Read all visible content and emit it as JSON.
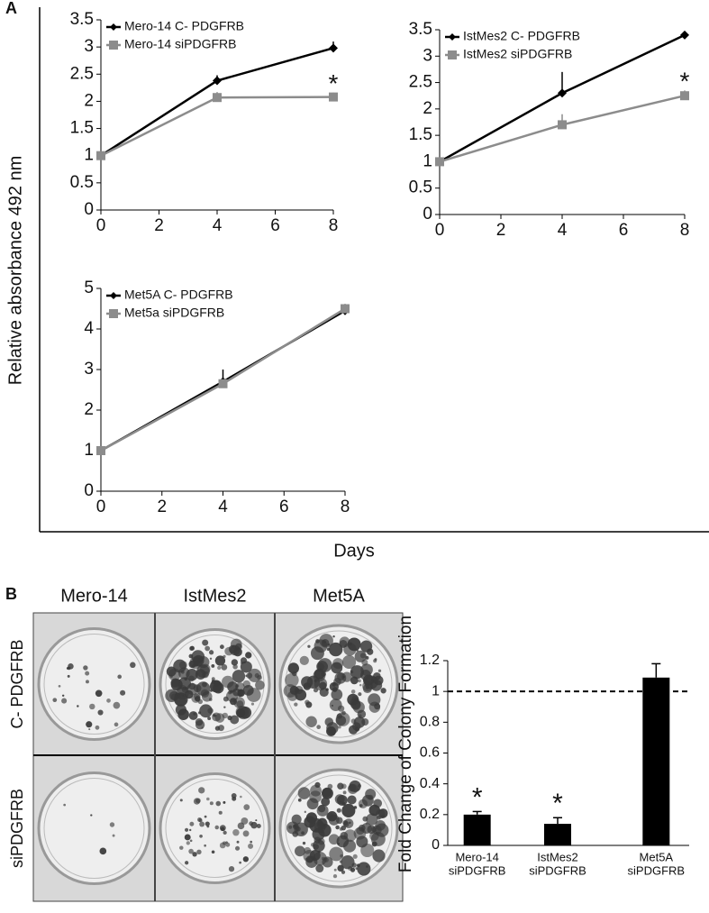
{
  "figure": {
    "panel_a": "A",
    "panel_b": "B",
    "y_label": "Relative absorbance 492 nm",
    "x_label": "Days"
  },
  "photos": {
    "columns": [
      "Mero-14",
      "IstMes2",
      "Met5A"
    ],
    "rows": [
      "C- PDGFRB",
      "siPDGFRB"
    ]
  },
  "chart_data": [
    {
      "type": "line",
      "x": [
        0,
        4,
        8
      ],
      "xlim": [
        0,
        8
      ],
      "xticks": [
        0,
        2,
        4,
        6,
        8
      ],
      "ylim": [
        0,
        3.5
      ],
      "yticks": [
        0,
        0.5,
        1,
        1.5,
        2,
        2.5,
        3,
        3.5
      ],
      "annotation": "*",
      "series": [
        {
          "name": "Mero-14  C-  PDGFRB",
          "color": "#000000",
          "marker": "diamond",
          "values": [
            1,
            2.38,
            2.98
          ],
          "errors": [
            null,
            0.1,
            0.12
          ]
        },
        {
          "name": "Mero-14  siPDGFRB",
          "color": "#8c8c8c",
          "marker": "square",
          "values": [
            1,
            2.07,
            2.08
          ],
          "errors": [
            null,
            0.1,
            0.08
          ]
        }
      ]
    },
    {
      "type": "line",
      "x": [
        0,
        4,
        8
      ],
      "xlim": [
        0,
        8
      ],
      "xticks": [
        0,
        2,
        4,
        6,
        8
      ],
      "ylim": [
        0,
        3.5
      ],
      "yticks": [
        0,
        0.5,
        1,
        1.5,
        2,
        2.5,
        3,
        3.5
      ],
      "annotation": "*",
      "series": [
        {
          "name": "IstMes2 C-  PDGFRB",
          "color": "#000000",
          "marker": "diamond",
          "values": [
            1,
            2.3,
            3.4
          ],
          "errors": [
            null,
            0.4,
            0.05
          ]
        },
        {
          "name": "IstMes2 siPDGFRB",
          "color": "#8c8c8c",
          "marker": "square",
          "values": [
            1,
            1.7,
            2.25
          ],
          "errors": [
            null,
            0.2,
            0.1
          ]
        }
      ]
    },
    {
      "type": "line",
      "x": [
        0,
        4,
        8
      ],
      "xlim": [
        0,
        8
      ],
      "xticks": [
        0,
        2,
        4,
        6,
        8
      ],
      "ylim": [
        0,
        5
      ],
      "yticks": [
        0,
        1,
        2,
        3,
        4,
        5
      ],
      "series": [
        {
          "name": "Met5A C-  PDGFRB",
          "color": "#000000",
          "marker": "diamond",
          "values": [
            1,
            2.7,
            4.45
          ],
          "errors": [
            null,
            0.3,
            0.15
          ]
        },
        {
          "name": "Met5a siPDGFRB",
          "color": "#8c8c8c",
          "marker": "square",
          "values": [
            1,
            2.65,
            4.5
          ],
          "errors": [
            null,
            0.1,
            0.12
          ]
        }
      ]
    },
    {
      "type": "bar",
      "y_label": "Fold Change of Colony Formation",
      "categories": [
        [
          "Mero-14",
          "siPDGFRB"
        ],
        [
          "IstMes2",
          "siPDGFRB"
        ],
        [
          "Met5A",
          "siPDGFRB"
        ]
      ],
      "values": [
        0.2,
        0.14,
        1.09
      ],
      "errors": [
        0.02,
        0.04,
        0.09
      ],
      "annotations": [
        "*",
        "*",
        null
      ],
      "color": "#000000",
      "reference_line": 1,
      "ylim": [
        0,
        1.2
      ],
      "yticks": [
        0,
        0.2,
        0.4,
        0.6,
        0.8,
        1,
        1.2
      ]
    }
  ]
}
